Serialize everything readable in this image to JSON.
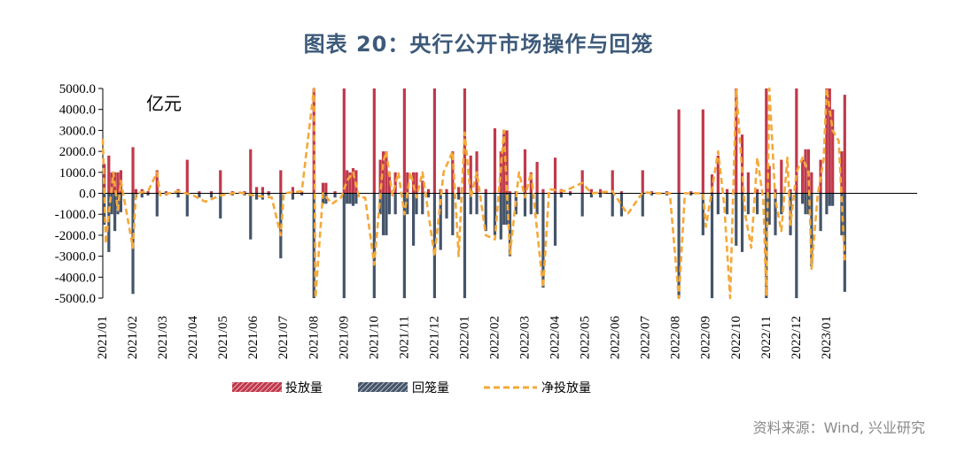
{
  "title": "图表 20：央行公开市场操作与回笼",
  "source": "资料来源：Wind, 兴业研究",
  "chart_data": {
    "type": "bar",
    "unit_label": "亿元",
    "ylim": [
      -5000,
      5000
    ],
    "yticks": [
      5000,
      4000,
      3000,
      2000,
      1000,
      0,
      -1000,
      -2000,
      -3000,
      -4000,
      -5000
    ],
    "ytick_labels": [
      "5000.0",
      "4000.0",
      "3000.0",
      "2000.0",
      "1000.0",
      "0.0",
      "-1000.0",
      "-2000.0",
      "-3000.0",
      "-4000.0",
      "-5000.0"
    ],
    "xlim": [
      0,
      27
    ],
    "x_labels": [
      "2021/01",
      "2021/02",
      "2021/03",
      "2021/04",
      "2021/05",
      "2021/06",
      "2021/07",
      "2021/08",
      "2021/09",
      "2021/10",
      "2021/11",
      "2021/12",
      "2022/01",
      "2022/02",
      "2022/03",
      "2022/04",
      "2022/05",
      "2022/06",
      "2022/07",
      "2022/08",
      "2022/09",
      "2022/10",
      "2022/11",
      "2022/12",
      "2023/01"
    ],
    "legend": [
      "投放量",
      "回笼量",
      "净投放量"
    ],
    "colors": {
      "injection": "#c0394b",
      "withdrawal": "#44546a",
      "net": "#f4a93a"
    },
    "series": [
      {
        "name": "投放量",
        "points": [
          [
            0.05,
            1400
          ],
          [
            0.2,
            1800
          ],
          [
            0.3,
            1000
          ],
          [
            0.4,
            1000
          ],
          [
            0.5,
            1000
          ],
          [
            0.6,
            1100
          ],
          [
            1.0,
            2200
          ],
          [
            1.1,
            200
          ],
          [
            1.3,
            200
          ],
          [
            1.5,
            100
          ],
          [
            1.8,
            1100
          ],
          [
            2.1,
            100
          ],
          [
            2.5,
            200
          ],
          [
            2.8,
            1600
          ],
          [
            3.2,
            100
          ],
          [
            3.6,
            100
          ],
          [
            3.9,
            1100
          ],
          [
            4.3,
            100
          ],
          [
            4.7,
            100
          ],
          [
            4.9,
            2100
          ],
          [
            5.1,
            300
          ],
          [
            5.3,
            300
          ],
          [
            5.5,
            100
          ],
          [
            5.9,
            1100
          ],
          [
            6.3,
            300
          ],
          [
            6.6,
            100
          ],
          [
            7.0,
            5000
          ],
          [
            7.3,
            500
          ],
          [
            7.4,
            500
          ],
          [
            7.7,
            100
          ],
          [
            8.0,
            5000
          ],
          [
            8.1,
            1100
          ],
          [
            8.2,
            1000
          ],
          [
            8.3,
            1200
          ],
          [
            8.4,
            1100
          ],
          [
            9.0,
            5000
          ],
          [
            9.2,
            1600
          ],
          [
            9.3,
            2000
          ],
          [
            9.4,
            2000
          ],
          [
            9.5,
            1000
          ],
          [
            9.7,
            1000
          ],
          [
            10.0,
            5000
          ],
          [
            10.1,
            1000
          ],
          [
            10.3,
            1000
          ],
          [
            10.4,
            1000
          ],
          [
            10.6,
            600
          ],
          [
            10.8,
            200
          ],
          [
            11.0,
            5000
          ],
          [
            11.2,
            200
          ],
          [
            11.4,
            200
          ],
          [
            11.6,
            2000
          ],
          [
            11.8,
            300
          ],
          [
            12.0,
            5000
          ],
          [
            12.2,
            1800
          ],
          [
            12.4,
            2000
          ],
          [
            12.7,
            200
          ],
          [
            13.0,
            3100
          ],
          [
            13.2,
            2000
          ],
          [
            13.3,
            3000
          ],
          [
            13.4,
            3000
          ],
          [
            13.5,
            100
          ],
          [
            13.7,
            100
          ],
          [
            14.0,
            2100
          ],
          [
            14.2,
            1000
          ],
          [
            14.4,
            1500
          ],
          [
            14.6,
            200
          ],
          [
            15.0,
            1700
          ],
          [
            15.2,
            200
          ],
          [
            15.5,
            100
          ],
          [
            15.9,
            1100
          ],
          [
            16.2,
            200
          ],
          [
            16.5,
            200
          ],
          [
            16.9,
            1100
          ],
          [
            17.2,
            100
          ],
          [
            17.9,
            1100
          ],
          [
            18.2,
            100
          ],
          [
            18.7,
            100
          ],
          [
            19.1,
            4000
          ],
          [
            19.5,
            100
          ],
          [
            19.9,
            4000
          ],
          [
            20.2,
            900
          ],
          [
            20.4,
            1800
          ],
          [
            20.7,
            200
          ],
          [
            21.0,
            5000
          ],
          [
            21.2,
            2800
          ],
          [
            21.4,
            1000
          ],
          [
            21.7,
            200
          ],
          [
            22.0,
            5000
          ],
          [
            22.1,
            1300
          ],
          [
            22.3,
            200
          ],
          [
            22.5,
            1600
          ],
          [
            22.8,
            200
          ],
          [
            23.0,
            5000
          ],
          [
            23.2,
            1600
          ],
          [
            23.3,
            2100
          ],
          [
            23.4,
            2100
          ],
          [
            23.5,
            1000
          ],
          [
            23.8,
            1600
          ],
          [
            24.0,
            5000
          ],
          [
            24.1,
            5000
          ],
          [
            24.2,
            4000
          ],
          [
            24.5,
            2000
          ],
          [
            24.6,
            4700
          ]
        ]
      },
      {
        "name": "回笼量",
        "points": [
          [
            0.05,
            -1500
          ],
          [
            0.2,
            -2800
          ],
          [
            0.3,
            -1000
          ],
          [
            0.4,
            -1800
          ],
          [
            0.5,
            -1000
          ],
          [
            0.6,
            -900
          ],
          [
            1.0,
            -4800
          ],
          [
            1.1,
            -200
          ],
          [
            1.3,
            -200
          ],
          [
            1.5,
            -100
          ],
          [
            1.8,
            -1100
          ],
          [
            2.1,
            -100
          ],
          [
            2.5,
            -200
          ],
          [
            2.8,
            -1100
          ],
          [
            3.2,
            -200
          ],
          [
            3.6,
            -200
          ],
          [
            3.9,
            -1200
          ],
          [
            4.3,
            -100
          ],
          [
            4.7,
            -100
          ],
          [
            4.9,
            -2200
          ],
          [
            5.1,
            -300
          ],
          [
            5.3,
            -300
          ],
          [
            5.5,
            -100
          ],
          [
            5.9,
            -3100
          ],
          [
            6.3,
            -300
          ],
          [
            6.6,
            -100
          ],
          [
            7.0,
            -5000
          ],
          [
            7.3,
            -500
          ],
          [
            7.4,
            -500
          ],
          [
            7.7,
            -200
          ],
          [
            8.0,
            -5000
          ],
          [
            8.1,
            -500
          ],
          [
            8.2,
            -500
          ],
          [
            8.3,
            -600
          ],
          [
            8.4,
            -500
          ],
          [
            9.0,
            -5000
          ],
          [
            9.2,
            -1000
          ],
          [
            9.3,
            -2000
          ],
          [
            9.4,
            -2000
          ],
          [
            9.5,
            -1000
          ],
          [
            9.7,
            -1000
          ],
          [
            10.0,
            -5000
          ],
          [
            10.1,
            -1000
          ],
          [
            10.3,
            -2500
          ],
          [
            10.4,
            -1000
          ],
          [
            10.6,
            -1000
          ],
          [
            10.8,
            -200
          ],
          [
            11.0,
            -5000
          ],
          [
            11.2,
            -2700
          ],
          [
            11.4,
            -1200
          ],
          [
            11.6,
            -2000
          ],
          [
            11.8,
            -300
          ],
          [
            12.0,
            -5000
          ],
          [
            12.2,
            -1000
          ],
          [
            12.4,
            -1000
          ],
          [
            12.7,
            -1800
          ],
          [
            13.0,
            -2000
          ],
          [
            13.2,
            -2200
          ],
          [
            13.3,
            -1500
          ],
          [
            13.4,
            -1500
          ],
          [
            13.5,
            -3000
          ],
          [
            13.7,
            -1000
          ],
          [
            14.0,
            -1100
          ],
          [
            14.2,
            -1000
          ],
          [
            14.4,
            -1000
          ],
          [
            14.6,
            -4500
          ],
          [
            15.0,
            -2500
          ],
          [
            15.2,
            -200
          ],
          [
            15.5,
            -100
          ],
          [
            15.9,
            -1100
          ],
          [
            16.2,
            -200
          ],
          [
            16.5,
            -200
          ],
          [
            16.9,
            -1100
          ],
          [
            17.2,
            -1100
          ],
          [
            17.9,
            -1100
          ],
          [
            18.2,
            -100
          ],
          [
            18.7,
            -100
          ],
          [
            19.1,
            -5000
          ],
          [
            19.5,
            -100
          ],
          [
            19.9,
            -2000
          ],
          [
            20.2,
            -5000
          ],
          [
            20.4,
            -1000
          ],
          [
            20.7,
            -1000
          ],
          [
            21.0,
            -2500
          ],
          [
            21.2,
            -2800
          ],
          [
            21.4,
            -1000
          ],
          [
            21.7,
            -1000
          ],
          [
            22.0,
            -5000
          ],
          [
            22.1,
            -1500
          ],
          [
            22.3,
            -2000
          ],
          [
            22.5,
            -1000
          ],
          [
            22.8,
            -2000
          ],
          [
            23.0,
            -5000
          ],
          [
            23.2,
            -500
          ],
          [
            23.3,
            -1000
          ],
          [
            23.4,
            -1000
          ],
          [
            23.5,
            -3500
          ],
          [
            23.8,
            -1800
          ],
          [
            24.0,
            -1000
          ],
          [
            24.1,
            -600
          ],
          [
            24.2,
            -600
          ],
          [
            24.5,
            -2000
          ],
          [
            24.6,
            -4700
          ]
        ]
      },
      {
        "name": "净投放量",
        "points": [
          [
            0.0,
            2600
          ],
          [
            0.1,
            -2400
          ],
          [
            0.2,
            -1000
          ],
          [
            0.35,
            1000
          ],
          [
            0.5,
            -800
          ],
          [
            0.6,
            600
          ],
          [
            0.8,
            -1000
          ],
          [
            1.0,
            -2600
          ],
          [
            1.1,
            0
          ],
          [
            1.5,
            100
          ],
          [
            1.8,
            1000
          ],
          [
            1.9,
            -100
          ],
          [
            2.5,
            100
          ],
          [
            3.0,
            -100
          ],
          [
            3.4,
            -400
          ],
          [
            3.9,
            -100
          ],
          [
            4.5,
            50
          ],
          [
            5.0,
            -100
          ],
          [
            5.6,
            -200
          ],
          [
            5.9,
            -2000
          ],
          [
            6.0,
            0
          ],
          [
            6.6,
            100
          ],
          [
            7.0,
            5000
          ],
          [
            7.05,
            -5000
          ],
          [
            7.3,
            0
          ],
          [
            7.6,
            -500
          ],
          [
            7.9,
            -200
          ],
          [
            8.1,
            600
          ],
          [
            8.3,
            1000
          ],
          [
            8.5,
            -200
          ],
          [
            8.7,
            -200
          ],
          [
            9.0,
            -3400
          ],
          [
            9.3,
            1500
          ],
          [
            9.4,
            2000
          ],
          [
            9.6,
            -100
          ],
          [
            9.8,
            1000
          ],
          [
            10.0,
            -1000
          ],
          [
            10.2,
            1000
          ],
          [
            10.4,
            -200
          ],
          [
            10.6,
            1000
          ],
          [
            10.8,
            -1000
          ],
          [
            11.0,
            -3000
          ],
          [
            11.3,
            1000
          ],
          [
            11.6,
            2000
          ],
          [
            11.8,
            -3000
          ],
          [
            12.0,
            2900
          ],
          [
            12.2,
            -200
          ],
          [
            12.4,
            1000
          ],
          [
            12.7,
            -2000
          ],
          [
            13.0,
            -2200
          ],
          [
            13.3,
            3000
          ],
          [
            13.5,
            -2900
          ],
          [
            13.8,
            1000
          ],
          [
            14.0,
            -200
          ],
          [
            14.2,
            1000
          ],
          [
            14.6,
            -4500
          ],
          [
            14.8,
            200
          ],
          [
            15.3,
            100
          ],
          [
            15.9,
            500
          ],
          [
            16.2,
            0
          ],
          [
            16.9,
            100
          ],
          [
            17.4,
            -1000
          ],
          [
            17.9,
            50
          ],
          [
            18.3,
            0
          ],
          [
            18.8,
            0
          ],
          [
            19.1,
            -5000
          ],
          [
            19.3,
            0
          ],
          [
            19.9,
            0
          ],
          [
            20.0,
            -1600
          ],
          [
            20.4,
            2000
          ],
          [
            20.6,
            -500
          ],
          [
            20.8,
            -5000
          ],
          [
            21.0,
            5000
          ],
          [
            21.3,
            -1000
          ],
          [
            21.5,
            -2600
          ],
          [
            21.7,
            1700
          ],
          [
            21.9,
            -300
          ],
          [
            22.0,
            -4900
          ],
          [
            22.1,
            5000
          ],
          [
            22.3,
            -300
          ],
          [
            22.5,
            -1800
          ],
          [
            22.7,
            1700
          ],
          [
            22.8,
            -1500
          ],
          [
            23.0,
            1000
          ],
          [
            23.2,
            1700
          ],
          [
            23.4,
            1000
          ],
          [
            23.5,
            -3600
          ],
          [
            23.7,
            -100
          ],
          [
            23.9,
            1600
          ],
          [
            24.0,
            5000
          ],
          [
            24.2,
            3000
          ],
          [
            24.4,
            2500
          ],
          [
            24.6,
            -3200
          ]
        ]
      }
    ]
  }
}
